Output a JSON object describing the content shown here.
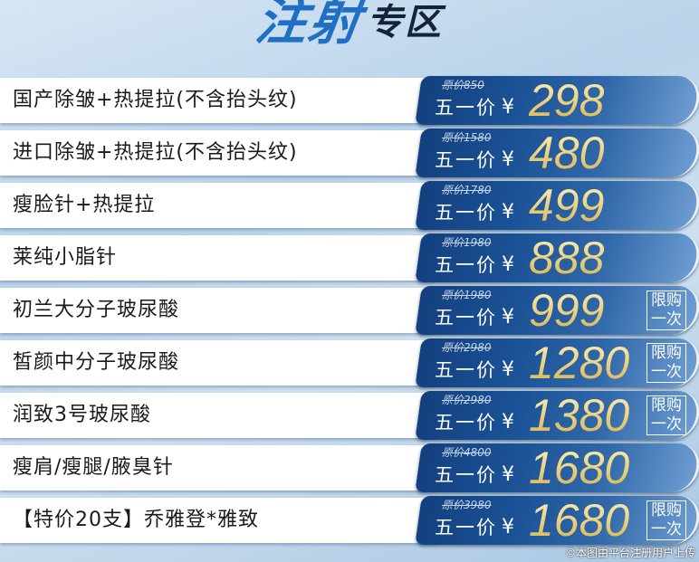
{
  "title": {
    "part1": "注射",
    "part2": "专区"
  },
  "offer_label": "五一价",
  "currency": "¥",
  "limit_label": "限购一次",
  "items": [
    {
      "name": "国产除皱+热提拉(不含抬头纹)",
      "original": "原价850",
      "price": "298",
      "limited": false
    },
    {
      "name": "进口除皱+热提拉(不含抬头纹)",
      "original": "原价1580",
      "price": "480",
      "limited": false
    },
    {
      "name": "瘦脸针+热提拉",
      "original": "原价1780",
      "price": "499",
      "limited": false
    },
    {
      "name": "莱纯小脂针",
      "original": "原价1980",
      "price": "888",
      "limited": false
    },
    {
      "name": "初兰大分子玻尿酸",
      "original": "原价1980",
      "price": "999",
      "limited": true
    },
    {
      "name": "皙颜中分子玻尿酸",
      "original": "原价2980",
      "price": "1280",
      "limited": true
    },
    {
      "name": "润致3号玻尿酸",
      "original": "原价2980",
      "price": "1380",
      "limited": true
    },
    {
      "name": "瘦肩/瘦腿/腋臭针",
      "original": "原价4800",
      "price": "1680",
      "limited": false
    },
    {
      "name": "【特价20支】乔雅登*雅致",
      "original": "原价3980",
      "price": "1680",
      "limited": true
    }
  ],
  "watermark": "©本图由平台注册用户上传"
}
